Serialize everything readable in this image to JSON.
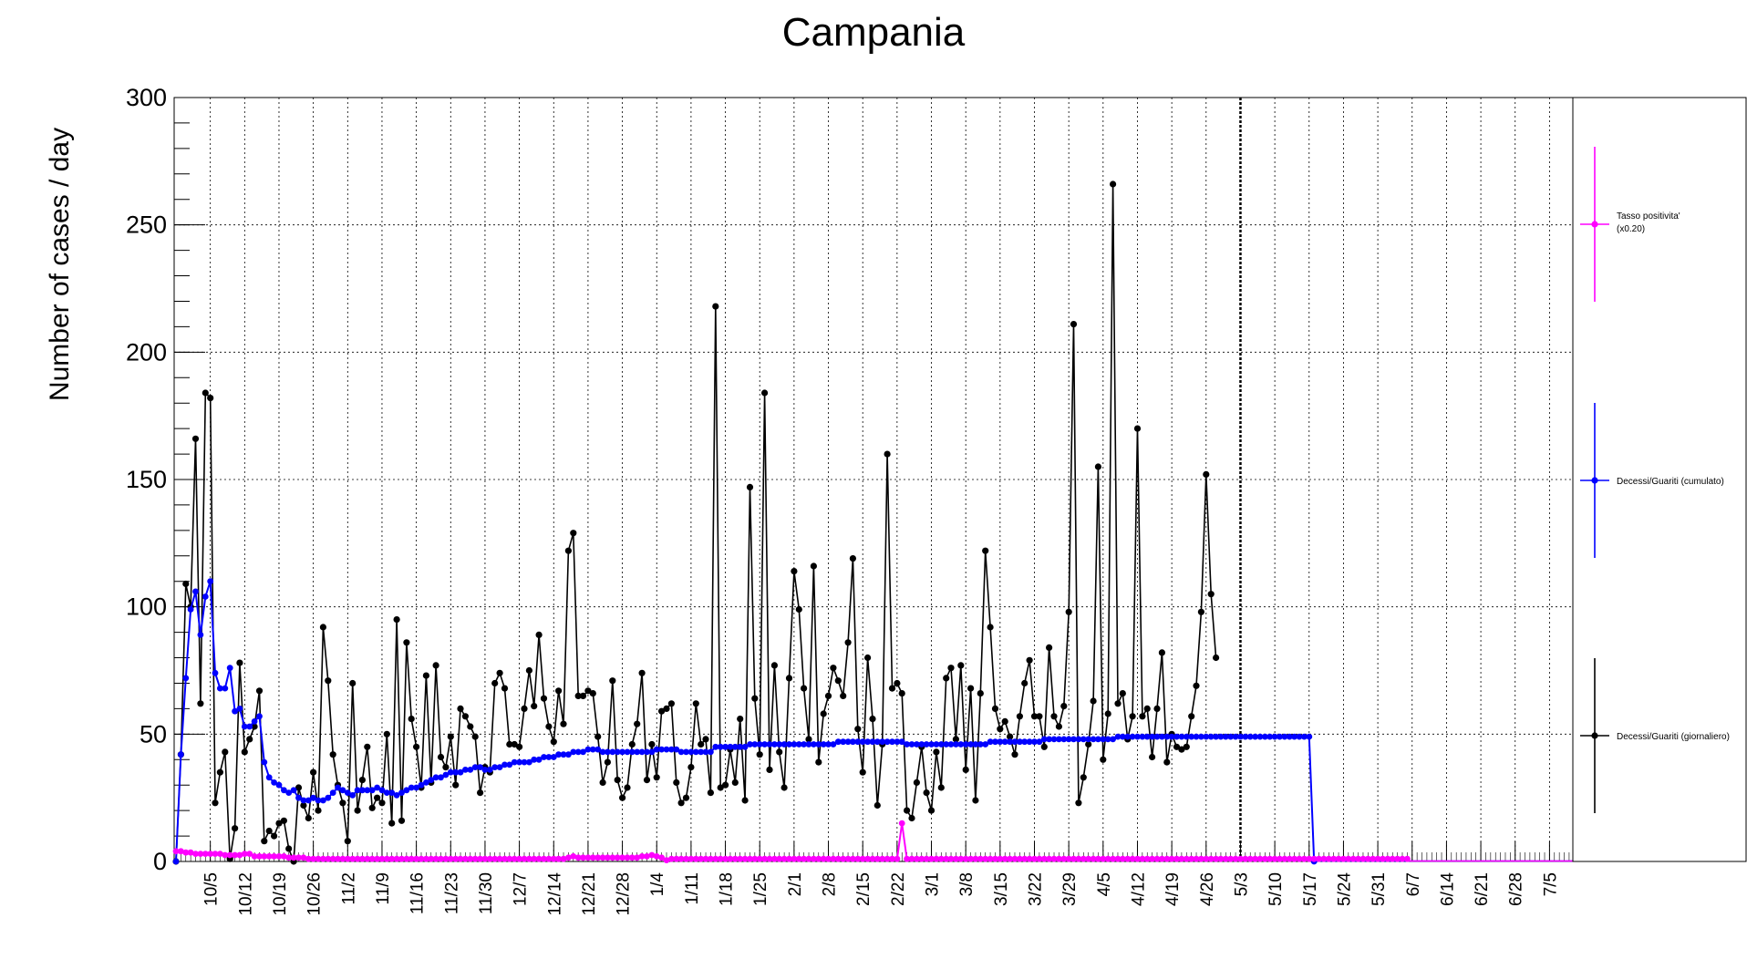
{
  "chart_data": {
    "type": "line",
    "title": "Campania",
    "xlabel": "",
    "ylabel": "Number of cases / day",
    "ylim": [
      0,
      300
    ],
    "yticks": [
      0,
      50,
      100,
      150,
      200,
      250,
      300
    ],
    "x_start_date": "9/28",
    "x_end_date": "7/12",
    "x_ticks": [
      "10/5",
      "10/12",
      "10/19",
      "10/26",
      "11/2",
      "11/9",
      "11/16",
      "11/23",
      "11/30",
      "12/7",
      "12/14",
      "12/21",
      "12/28",
      "1/4",
      "1/11",
      "1/18",
      "1/25",
      "2/1",
      "2/8",
      "2/15",
      "2/22",
      "3/1",
      "3/8",
      "3/15",
      "3/22",
      "3/29",
      "4/5",
      "4/12",
      "4/19",
      "4/26",
      "5/3",
      "5/10",
      "5/17",
      "5/24",
      "5/31",
      "6/7",
      "6/14",
      "6/21",
      "6/28",
      "7/5"
    ],
    "marker_line_date": "5/3",
    "grid": true,
    "legend_position": "right",
    "series": [
      {
        "name": "Tasso positivita' (x0.20)",
        "color": "#ff00ff",
        "values_daily_from_9/28": [
          4,
          4,
          3.5,
          3.5,
          3,
          3,
          3,
          3,
          3,
          3,
          2.5,
          2.5,
          2.5,
          2.5,
          3,
          3,
          2,
          2,
          2,
          2,
          2,
          2,
          2,
          1.5,
          1.5,
          1.5,
          1.5,
          1,
          1,
          1,
          1,
          1,
          1,
          1,
          1,
          1,
          1,
          1,
          1,
          1,
          1,
          1,
          1,
          1,
          1,
          1,
          1,
          1,
          1,
          1,
          1,
          1,
          1,
          1,
          1,
          1,
          1,
          1,
          1,
          1,
          1,
          1,
          1,
          1,
          1,
          1,
          1,
          1,
          1,
          1,
          1,
          1,
          1,
          1,
          1,
          1,
          1,
          1,
          1,
          1,
          1.5,
          2,
          1.5,
          1.5,
          1.5,
          1.5,
          1.5,
          1.5,
          1.5,
          1.5,
          1.5,
          1.5,
          1.5,
          1.5,
          1.5,
          2,
          2,
          2.5,
          2,
          1.5,
          0.5,
          1,
          1,
          1,
          1,
          1,
          1,
          1,
          1,
          1,
          1,
          1,
          1,
          1,
          1,
          1,
          1,
          1,
          1,
          1,
          1,
          1,
          1,
          1,
          1,
          1,
          1,
          1,
          1,
          1,
          1,
          1,
          1,
          1,
          1,
          1,
          1,
          1,
          1,
          1,
          1,
          1,
          1,
          1,
          1,
          1,
          1,
          1,
          15,
          1,
          1,
          1,
          1,
          1,
          1,
          1,
          1,
          1,
          1,
          1,
          1,
          1,
          1,
          1,
          1,
          1,
          1,
          1,
          1,
          1,
          1,
          1,
          1,
          1,
          1,
          1,
          1,
          1,
          1,
          1,
          1,
          1,
          1,
          1,
          1,
          1,
          1,
          1,
          1,
          1,
          1,
          1,
          1,
          1,
          1,
          1,
          1,
          1,
          1,
          1,
          1,
          1,
          1,
          1,
          1,
          1,
          1,
          1,
          1,
          1,
          1,
          1,
          1,
          1,
          1,
          1,
          1,
          1,
          1,
          1,
          1,
          1,
          1,
          1,
          1,
          1,
          1,
          1,
          1,
          1,
          1,
          1,
          1,
          1,
          1,
          1,
          1,
          1,
          1,
          1,
          1,
          1,
          1,
          1,
          1,
          1,
          1,
          1,
          1,
          1,
          1,
          1
        ]
      },
      {
        "name": "Decessi/Guariti (cumulato)",
        "color": "#0000ff",
        "values_daily_from_9/28": [
          0,
          42,
          72,
          99,
          106,
          89,
          104,
          110,
          74,
          68,
          68,
          76,
          59,
          60,
          53,
          53,
          55,
          57,
          39,
          33,
          31,
          30,
          28,
          27,
          28,
          25,
          24,
          24,
          25,
          24,
          24,
          25,
          27,
          29,
          28,
          27,
          26,
          28,
          28,
          28,
          28,
          29,
          28,
          27,
          27,
          26,
          27,
          28,
          29,
          29,
          30,
          31,
          32,
          33,
          33,
          34,
          35,
          35,
          35,
          36,
          36,
          37,
          37,
          36,
          36,
          37,
          37,
          38,
          38,
          39,
          39,
          39,
          39,
          40,
          40,
          41,
          41,
          41,
          42,
          42,
          42,
          43,
          43,
          43,
          44,
          44,
          44,
          43,
          43,
          43,
          43,
          43,
          43,
          43,
          43,
          43,
          43,
          43,
          44,
          44,
          44,
          44,
          44,
          43,
          43,
          43,
          43,
          43,
          43,
          43,
          45,
          45,
          45,
          45,
          45,
          45,
          45,
          46,
          46,
          46,
          46,
          46,
          46,
          46,
          46,
          46,
          46,
          46,
          46,
          46,
          46,
          46,
          46,
          46,
          46,
          47,
          47,
          47,
          47,
          47,
          47,
          47,
          47,
          47,
          47,
          47,
          47,
          47,
          47,
          46,
          46,
          46,
          46,
          46,
          46,
          46,
          46,
          46,
          46,
          46,
          46,
          46,
          46,
          46,
          46,
          46,
          47,
          47,
          47,
          47,
          47,
          47,
          47,
          47,
          47,
          47,
          47,
          48,
          48,
          48,
          48,
          48,
          48,
          48,
          48,
          48,
          48,
          48,
          48,
          48,
          48,
          48,
          49,
          49,
          49,
          49,
          49,
          49,
          49,
          49,
          49,
          49,
          49,
          49,
          49,
          49,
          49,
          49,
          49,
          49,
          49,
          49,
          49,
          49,
          49,
          49,
          49,
          49,
          49,
          49,
          49,
          49,
          49,
          49,
          49,
          49,
          49,
          49,
          49,
          49,
          49,
          49,
          0
        ]
      },
      {
        "name": "Decessi/Guariti (giornaliero)",
        "color": "#000000",
        "values_daily_from_9/28": [
          0,
          42,
          109,
          100,
          166,
          62,
          184,
          182,
          23,
          35,
          43,
          1,
          13,
          78,
          43,
          48,
          53,
          67,
          8,
          12,
          10,
          15,
          16,
          5,
          0,
          29,
          22,
          17,
          35,
          20,
          92,
          71,
          42,
          30,
          23,
          8,
          70,
          20,
          32,
          45,
          21,
          25,
          23,
          50,
          15,
          95,
          16,
          86,
          56,
          45,
          29,
          73,
          31,
          77,
          41,
          37,
          49,
          30,
          60,
          57,
          53,
          49,
          27,
          37,
          35,
          70,
          74,
          68,
          46,
          46,
          45,
          60,
          75,
          61,
          89,
          64,
          53,
          47,
          67,
          54,
          122,
          129,
          65,
          65,
          67,
          66,
          49,
          31,
          39,
          71,
          32,
          25,
          29,
          46,
          54,
          74,
          32,
          46,
          33,
          59,
          60,
          62,
          31,
          23,
          25,
          37,
          62,
          46,
          48,
          27,
          218,
          29,
          30,
          44,
          31,
          56,
          24,
          147,
          64,
          42,
          184,
          36,
          77,
          43,
          29,
          72,
          114,
          99,
          68,
          48,
          116,
          39,
          58,
          65,
          76,
          71,
          65,
          86,
          119,
          52,
          35,
          80,
          56,
          22,
          46,
          160,
          68,
          70,
          66,
          20,
          17,
          31,
          45,
          27,
          20,
          43,
          29,
          72,
          76,
          48,
          77,
          36,
          68,
          24,
          66,
          122,
          92,
          60,
          52,
          55,
          49,
          42,
          57,
          70,
          79,
          57,
          57,
          45,
          84,
          57,
          53,
          61,
          98,
          211,
          23,
          33,
          46,
          63,
          155,
          40,
          58,
          266,
          62,
          66,
          48,
          57,
          170,
          57,
          60,
          41,
          60,
          82,
          39,
          50,
          45,
          44,
          45,
          57,
          69,
          98,
          152,
          105,
          80
        ]
      }
    ]
  }
}
